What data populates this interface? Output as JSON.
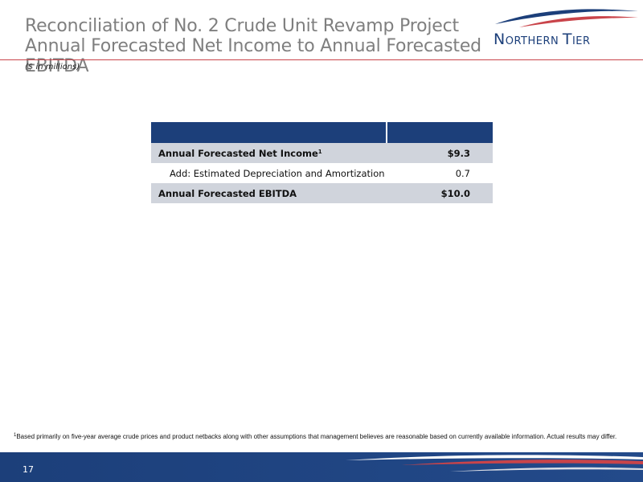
{
  "title": "Reconciliation of No. 2 Crude Unit Revamp Project Annual Forecasted Net Income to Annual Forecasted EBITDA",
  "subtitle": "($ in millions)",
  "logo": {
    "text_first_big": "N",
    "text_first_rest": "ORTHERN ",
    "text_second_big": "T",
    "text_second_rest": "IER"
  },
  "table": {
    "rows": [
      {
        "label": "Annual Forecasted Net Income",
        "superscript": "1",
        "value": "$9.3"
      },
      {
        "label": "Add: Estimated Depreciation and Amortization",
        "value": "0.7"
      },
      {
        "label": "Annual Forecasted EBITDA",
        "value": "$10.0"
      }
    ]
  },
  "footnote": {
    "marker": "1",
    "text": "Based primarily on five-year  average crude prices and product netbacks along with other assumptions that management believes are reasonable based on currently available information.  Actual results may differ."
  },
  "page_number": "17",
  "colors": {
    "navy": "#1c3f7a",
    "accent_red": "#c9444a",
    "row_shade": "#d0d4dc"
  }
}
